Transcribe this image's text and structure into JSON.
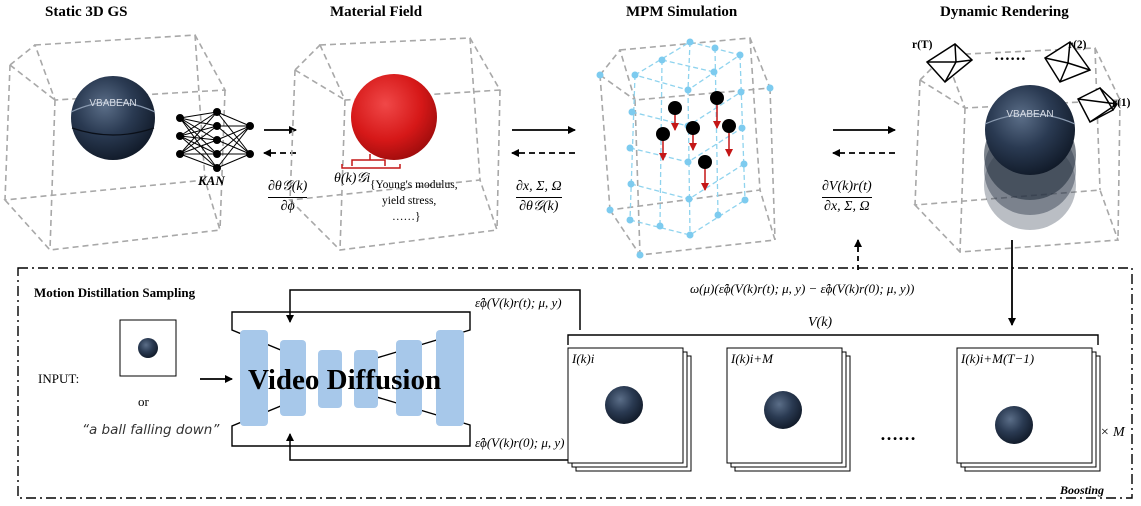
{
  "stages": {
    "static": "Static 3D GS",
    "material": "Material Field",
    "mpm": "MPM Simulation",
    "dynamic": "Dynamic Rendering"
  },
  "kan_label": "KAN",
  "grad_kan": {
    "num": "∂θ𝒢(k)",
    "den": "∂ϕ"
  },
  "theta_label": "θ(k)𝒢i",
  "material_props": {
    "line1": "{Young's modulus,",
    "line2": "yield stress,",
    "line3": "……}"
  },
  "grad_mpm": {
    "num": "∂x, Σ, Ω",
    "den": "∂θ𝒢(k)"
  },
  "grad_render": {
    "num": "∂V(k)r(t)",
    "den": "∂x, Σ, Ω"
  },
  "cameras": {
    "rT": "r(T)",
    "dots": "……",
    "r2": "r(2)",
    "r1": "r(1)"
  },
  "distill": {
    "title": "Motion Distillation Sampling",
    "input_label": "INPUT:",
    "or": "or",
    "prompt": "“a ball falling down”",
    "model": "Video Diffusion",
    "eps_t": "ε̂ϕ(V(k)r(t); μ, y)",
    "eps_0": "ε̂ϕ(V(k)r(0); μ, y)",
    "loss": "ω(μ)(ε̂ϕ(V(k)r(t); μ, y) − ε̂ϕ(V(k)r(0); μ, y))",
    "video_label": "V(k)",
    "frame1": "I(k)i",
    "frame2": "I(k)i+M",
    "frame_dots": "……",
    "frame3": "I(k)i+M(T−1)",
    "times_m": "× M",
    "boosting": "Boosting"
  },
  "ball_text": "VBABEAN",
  "colors": {
    "ball": "#243247",
    "red_ball": "#d81f1f",
    "grid": "#8fd3ee",
    "unet": "#a7c8ea",
    "arrow_red": "#c41616"
  }
}
